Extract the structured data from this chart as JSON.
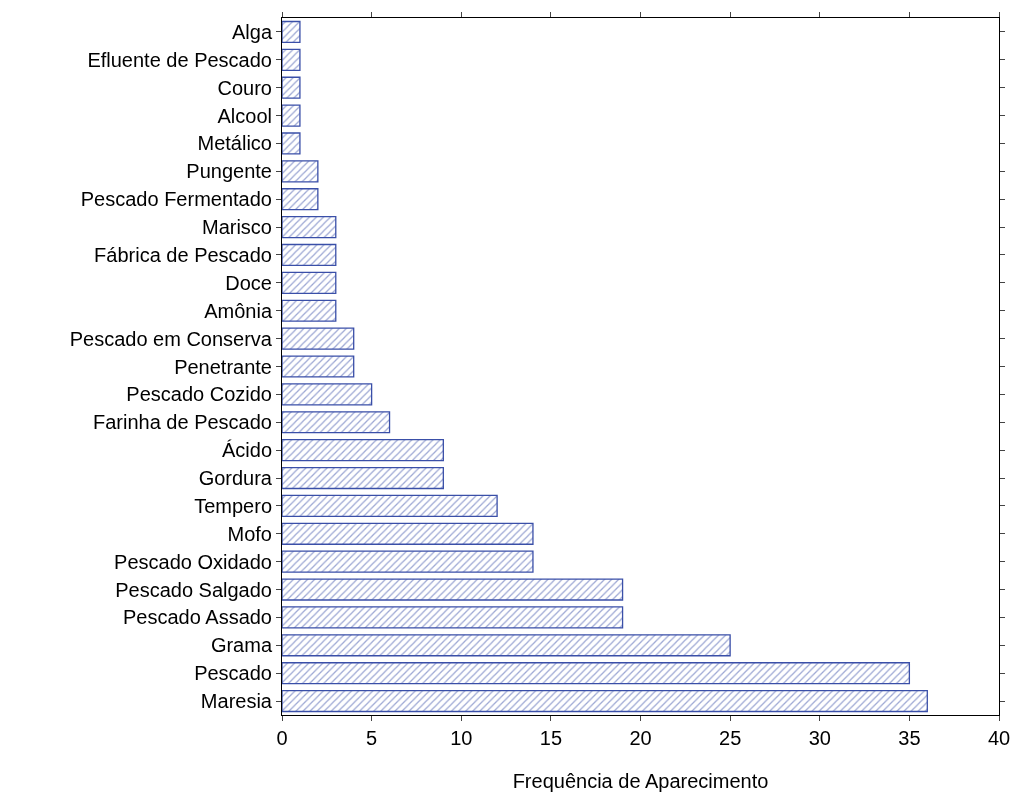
{
  "chart_data": {
    "type": "bar",
    "orientation": "horizontal",
    "xlabel": "Frequência de Aparecimento",
    "categories": [
      "Alga",
      "Efluente de Pescado",
      "Couro",
      "Alcool",
      "Metálico",
      "Pungente",
      "Pescado Fermentado",
      "Marisco",
      "Fábrica de Pescado",
      "Doce",
      "Amônia",
      "Pescado em Conserva",
      "Penetrante",
      "Pescado Cozido",
      "Farinha de Pescado",
      "Ácido",
      "Gordura",
      "Tempero",
      "Mofo",
      "Pescado Oxidado",
      "Pescado Salgado",
      "Pescado Assado",
      "Grama",
      "Pescado",
      "Maresia"
    ],
    "values": [
      1,
      1,
      1,
      1,
      1,
      2,
      2,
      3,
      3,
      3,
      3,
      4,
      4,
      5,
      6,
      9,
      9,
      12,
      14,
      14,
      19,
      19,
      25,
      35,
      36
    ],
    "color": "#3a4fa8",
    "xlim": [
      0,
      40
    ],
    "xticks": [
      0,
      5,
      10,
      15,
      20,
      25,
      30,
      35,
      40
    ]
  }
}
